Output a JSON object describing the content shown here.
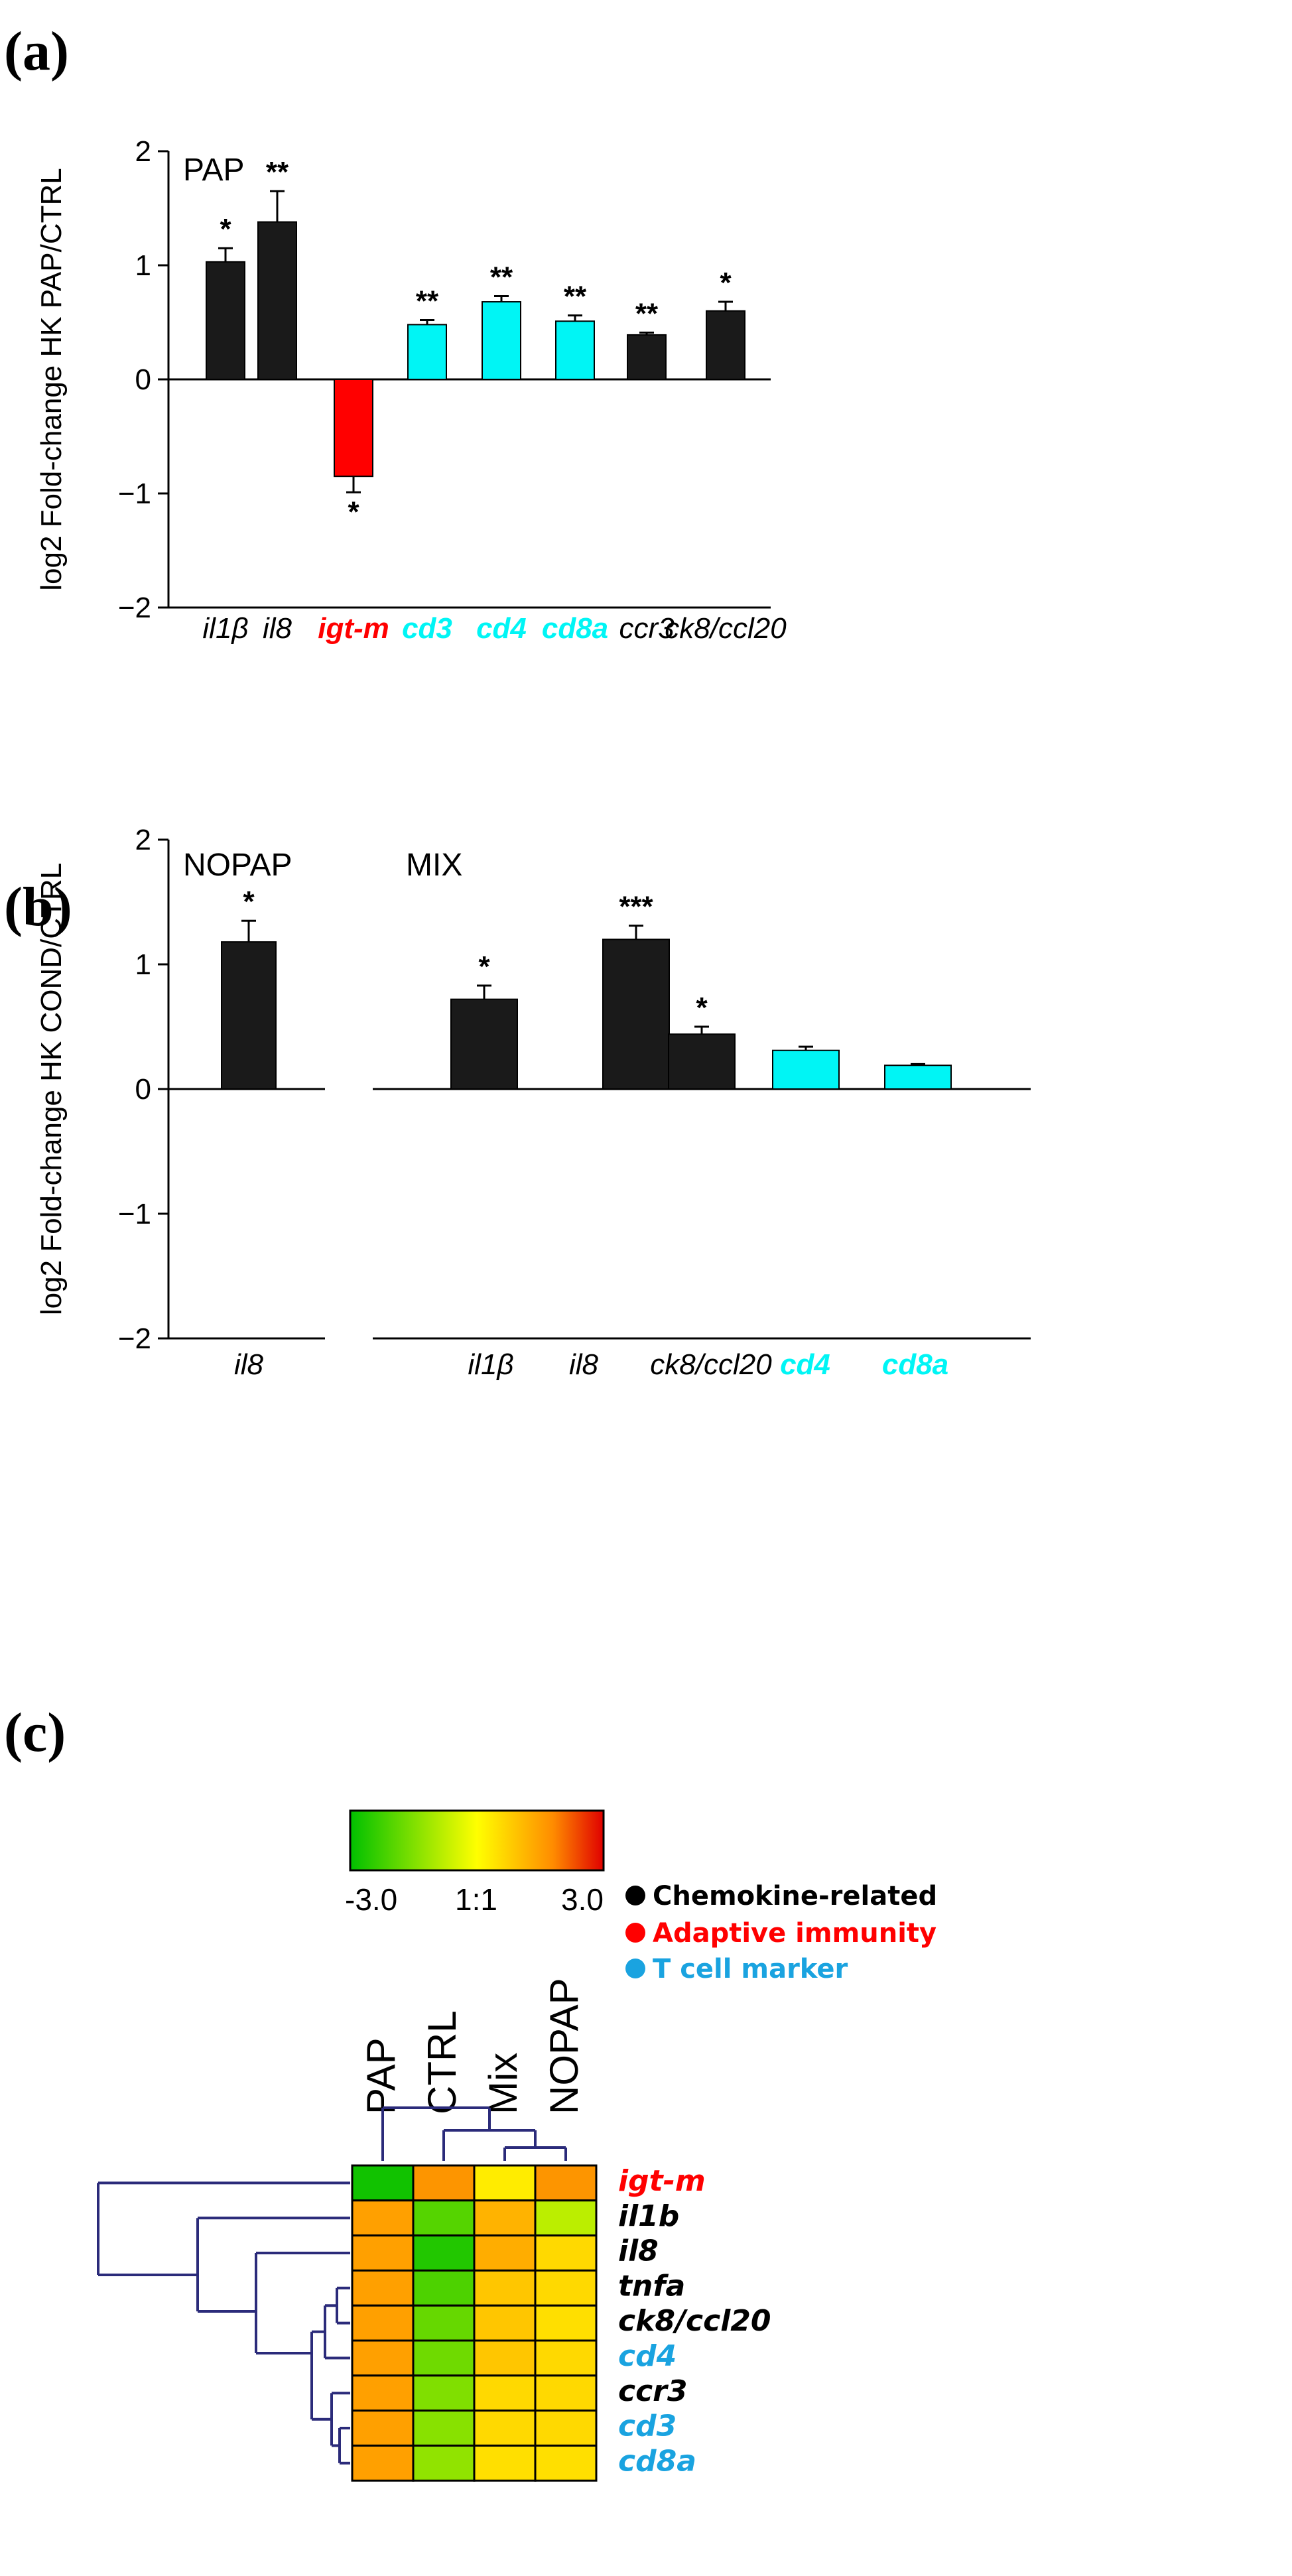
{
  "colors": {
    "black_bar": "#1a1a1a",
    "cyan_bar": "#00f5f5",
    "red_bar": "#ff0000",
    "chemokine": "#000000",
    "adaptive": "#ff0000",
    "tcell": "#1aa3e0",
    "dendrogram": "#2b2b7a"
  },
  "chart_data": [
    {
      "panel": "(a)",
      "type": "bar",
      "inset_label": "PAP",
      "ylabel": "log2 Fold-change HK PAP/CTRL",
      "ylim": [
        -2,
        2
      ],
      "yticks": [
        {
          "v": 2,
          "t": "2"
        },
        {
          "v": 1,
          "t": "1"
        },
        {
          "v": 0,
          "t": "0"
        },
        {
          "v": -1,
          "t": "−1"
        },
        {
          "v": -2,
          "t": "−2"
        }
      ],
      "categories": [
        "il1β",
        "il8",
        "igt-m",
        "cd3",
        "cd4",
        "cd8a",
        "ccr3",
        "ck8/ccl20"
      ],
      "category_colors": [
        "black",
        "black",
        "red",
        "cyan",
        "cyan",
        "cyan",
        "black",
        "black"
      ],
      "values": [
        1.03,
        1.38,
        -0.85,
        0.48,
        0.68,
        0.51,
        0.39,
        0.6
      ],
      "errors": [
        0.12,
        0.27,
        0.14,
        0.04,
        0.05,
        0.05,
        0.02,
        0.08
      ],
      "significance": [
        "*",
        "**",
        "*",
        "**",
        "**",
        "**",
        "**",
        "*"
      ]
    },
    {
      "panel": "(b)",
      "type": "bar",
      "ylabel": "log2 Fold-change HK COND/CTRL",
      "ylim": [
        -2,
        2
      ],
      "yticks": [
        {
          "v": 2,
          "t": "2"
        },
        {
          "v": 1,
          "t": "1"
        },
        {
          "v": 0,
          "t": "0"
        },
        {
          "v": -1,
          "t": "−1"
        },
        {
          "v": -2,
          "t": "−2"
        }
      ],
      "groups": [
        {
          "inset_label": "NOPAP",
          "categories": [
            "il8"
          ],
          "category_colors": [
            "black"
          ],
          "values": [
            1.18
          ],
          "errors": [
            0.17
          ],
          "significance": [
            "*"
          ]
        },
        {
          "inset_label": "MIX",
          "categories": [
            "il1β",
            "il8",
            "ck8/ccl20",
            "cd4",
            "cd8a"
          ],
          "category_colors": [
            "black",
            "black",
            "black",
            "cyan",
            "cyan"
          ],
          "values": [
            0.72,
            1.2,
            0.44,
            0.31,
            0.19
          ],
          "errors": [
            0.11,
            0.11,
            0.06,
            0.03,
            0.01
          ],
          "significance": [
            "*",
            "***",
            "*",
            "",
            ""
          ]
        }
      ]
    },
    {
      "panel": "(c)",
      "type": "heatmap",
      "colorbar": {
        "min_label": "-3.0",
        "mid_label": "1:1",
        "max_label": "3.0"
      },
      "columns": [
        "PAP",
        "CTRL",
        "Mix",
        "NOPAP"
      ],
      "rows": [
        {
          "name": "igt-m",
          "group": "adaptive",
          "values": [
            -2.8,
            1.6,
            0.3,
            1.6
          ]
        },
        {
          "name": "il1b",
          "group": "chemokine",
          "values": [
            1.5,
            -2.0,
            1.2,
            -0.8
          ]
        },
        {
          "name": "il8",
          "group": "chemokine",
          "values": [
            1.5,
            -2.6,
            1.3,
            0.6
          ]
        },
        {
          "name": "tnfa",
          "group": "chemokine",
          "values": [
            1.5,
            -2.1,
            0.9,
            0.6
          ]
        },
        {
          "name": "ck8/ccl20",
          "group": "chemokine",
          "values": [
            1.5,
            -1.8,
            0.9,
            0.5
          ]
        },
        {
          "name": "cd4",
          "group": "tcell",
          "values": [
            1.5,
            -1.7,
            0.9,
            0.6
          ]
        },
        {
          "name": "ccr3",
          "group": "chemokine",
          "values": [
            1.5,
            -1.5,
            0.6,
            0.6
          ]
        },
        {
          "name": "cd3",
          "group": "tcell",
          "values": [
            1.5,
            -1.4,
            0.6,
            0.6
          ]
        },
        {
          "name": "cd8a",
          "group": "tcell",
          "values": [
            1.5,
            -1.3,
            0.5,
            0.5
          ]
        }
      ],
      "legend": [
        {
          "label": "Chemokine-related",
          "group": "chemokine"
        },
        {
          "label": "Adaptive immunity",
          "group": "adaptive"
        },
        {
          "label": "T cell marker",
          "group": "tcell"
        }
      ]
    }
  ]
}
